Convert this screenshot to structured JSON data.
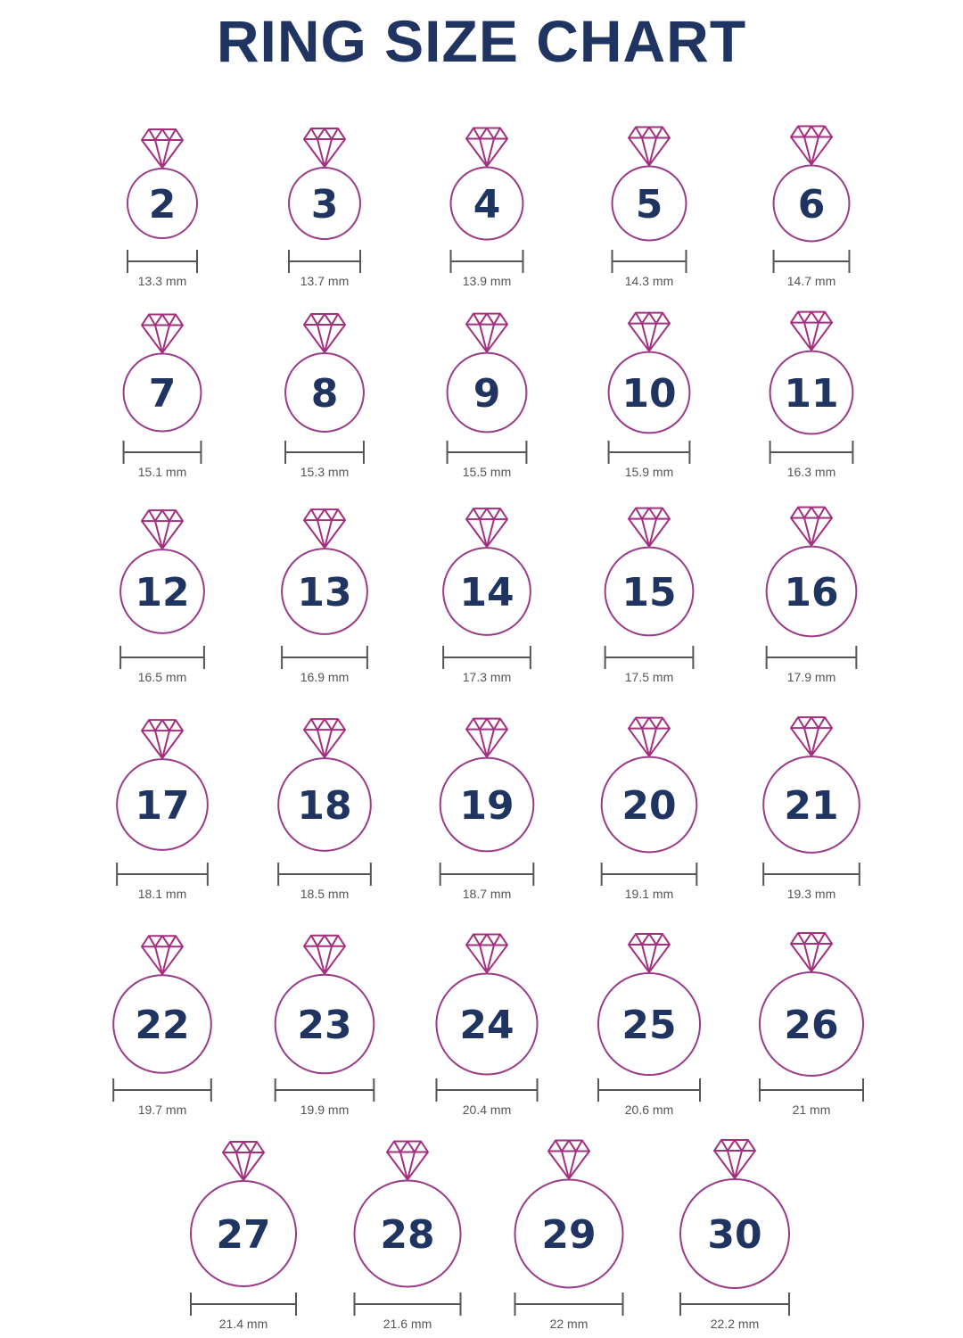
{
  "title": "RING SIZE CHART",
  "colors": {
    "title": "#1f3461",
    "ring": "#9a3b87",
    "diamond": "#a3307f",
    "measure": "#555555"
  },
  "icon": "diamond-ring-icon",
  "rings": [
    {
      "size": "2",
      "diameter": "13.3 mm"
    },
    {
      "size": "3",
      "diameter": "13.7 mm"
    },
    {
      "size": "4",
      "diameter": "13.9 mm"
    },
    {
      "size": "5",
      "diameter": "14.3 mm"
    },
    {
      "size": "6",
      "diameter": "14.7 mm"
    },
    {
      "size": "7",
      "diameter": "15.1 mm"
    },
    {
      "size": "8",
      "diameter": "15.3 mm"
    },
    {
      "size": "9",
      "diameter": "15.5 mm"
    },
    {
      "size": "10",
      "diameter": "15.9 mm"
    },
    {
      "size": "11",
      "diameter": "16.3 mm"
    },
    {
      "size": "12",
      "diameter": "16.5 mm"
    },
    {
      "size": "13",
      "diameter": "16.9 mm"
    },
    {
      "size": "14",
      "diameter": "17.3 mm"
    },
    {
      "size": "15",
      "diameter": "17.5 mm"
    },
    {
      "size": "16",
      "diameter": "17.9 mm"
    },
    {
      "size": "17",
      "diameter": "18.1 mm"
    },
    {
      "size": "18",
      "diameter": "18.5 mm"
    },
    {
      "size": "19",
      "diameter": "18.7 mm"
    },
    {
      "size": "20",
      "diameter": "19.1 mm"
    },
    {
      "size": "21",
      "diameter": "19.3 mm"
    },
    {
      "size": "22",
      "diameter": "19.7 mm"
    },
    {
      "size": "23",
      "diameter": "19.9 mm"
    },
    {
      "size": "24",
      "diameter": "20.4 mm"
    },
    {
      "size": "25",
      "diameter": "20.6 mm"
    },
    {
      "size": "26",
      "diameter": "21 mm"
    },
    {
      "size": "27",
      "diameter": "21.4 mm"
    },
    {
      "size": "28",
      "diameter": "21.6 mm"
    },
    {
      "size": "29",
      "diameter": "22 mm"
    },
    {
      "size": "30",
      "diameter": "22.2 mm"
    }
  ]
}
